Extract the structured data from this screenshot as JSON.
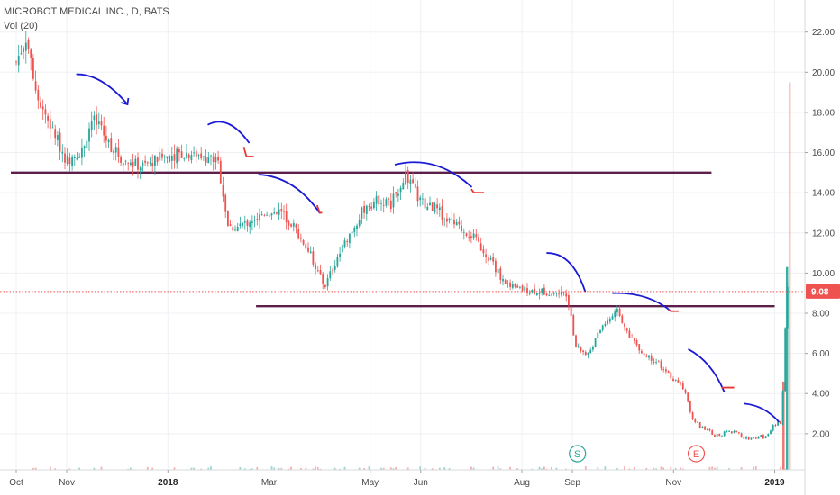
{
  "legend": {
    "title": "MICROBOT MEDICAL INC., D, BATS",
    "volume": "Vol (20)"
  },
  "colors": {
    "up": "#26a69a",
    "down": "#ef5350",
    "grid": "#eef0f3",
    "support_line": "#5c1f4a",
    "drawing_blue": "#1a1ad6",
    "drawing_red": "#e53935",
    "last_price": "#ef5350",
    "axis_text": "#4a4a4a"
  },
  "chart_data": {
    "type": "candlestick",
    "title": "MICROBOT MEDICAL INC., D, BATS",
    "indicator": "Vol (20)",
    "y_axis": {
      "side": "right",
      "min": 0.2,
      "max": 23.6,
      "ticks": [
        "2.00",
        "4.00",
        "6.00",
        "8.00",
        "10.00",
        "12.00",
        "14.00",
        "16.00",
        "18.00",
        "20.00",
        "22.00"
      ]
    },
    "x_axis": {
      "ticks": [
        {
          "label": "Oct",
          "pos": 0.0
        },
        {
          "label": "Nov",
          "pos": 1.0
        },
        {
          "label": "2018",
          "pos": 3.0,
          "bold": true
        },
        {
          "label": "Mar",
          "pos": 5.0
        },
        {
          "label": "May",
          "pos": 7.0
        },
        {
          "label": "Jun",
          "pos": 8.0
        },
        {
          "label": "Aug",
          "pos": 10.0
        },
        {
          "label": "Sep",
          "pos": 11.0
        },
        {
          "label": "Nov",
          "pos": 13.0
        },
        {
          "label": "2019",
          "pos": 15.0,
          "bold": true
        }
      ],
      "end_pos": 15.5
    },
    "last_price": {
      "value": 9.08,
      "label": "9.08"
    },
    "price_path": [
      [
        0.0,
        20.5
      ],
      [
        0.2,
        21.8
      ],
      [
        0.4,
        19.0
      ],
      [
        0.7,
        17.2
      ],
      [
        1.0,
        15.6
      ],
      [
        1.3,
        16.1
      ],
      [
        1.5,
        17.7
      ],
      [
        1.8,
        16.6
      ],
      [
        2.1,
        15.6
      ],
      [
        2.5,
        15.3
      ],
      [
        2.8,
        15.7
      ],
      [
        3.1,
        15.9
      ],
      [
        3.5,
        16.0
      ],
      [
        3.9,
        15.7
      ],
      [
        4.0,
        15.4
      ],
      [
        4.2,
        12.2
      ],
      [
        4.5,
        12.4
      ],
      [
        4.9,
        13.0
      ],
      [
        5.2,
        13.1
      ],
      [
        5.5,
        12.3
      ],
      [
        5.8,
        11.0
      ],
      [
        6.1,
        9.3
      ],
      [
        6.3,
        10.5
      ],
      [
        6.6,
        12.0
      ],
      [
        6.9,
        13.3
      ],
      [
        7.2,
        13.7
      ],
      [
        7.4,
        13.4
      ],
      [
        7.7,
        14.9
      ],
      [
        8.0,
        13.5
      ],
      [
        8.3,
        13.2
      ],
      [
        8.6,
        12.5
      ],
      [
        9.0,
        11.9
      ],
      [
        9.4,
        10.6
      ],
      [
        9.7,
        9.3
      ],
      [
        10.0,
        9.2
      ],
      [
        10.3,
        9.1
      ],
      [
        10.6,
        9.05
      ],
      [
        10.9,
        9.0
      ],
      [
        11.05,
        6.4
      ],
      [
        11.3,
        5.9
      ],
      [
        11.6,
        7.4
      ],
      [
        11.9,
        8.1
      ],
      [
        12.1,
        7.0
      ],
      [
        12.4,
        6.0
      ],
      [
        12.7,
        5.5
      ],
      [
        13.0,
        4.7
      ],
      [
        13.2,
        4.3
      ],
      [
        13.4,
        2.6
      ],
      [
        13.8,
        1.9
      ],
      [
        14.2,
        2.1
      ],
      [
        14.5,
        1.7
      ],
      [
        14.8,
        1.9
      ],
      [
        15.0,
        2.4
      ],
      [
        15.12,
        2.6
      ],
      [
        15.17,
        4.6
      ],
      [
        15.24,
        9.6
      ],
      [
        15.3,
        9.08
      ]
    ],
    "horizontal_lines": [
      {
        "x1": 0.0,
        "x2": 13.75,
        "y": 15.0
      },
      {
        "x1": 4.85,
        "x2": 15.0,
        "y": 8.35
      }
    ],
    "annotations": [
      {
        "type": "arrow",
        "color": "blue",
        "points": [
          [
            1.2,
            19.9
          ],
          [
            1.7,
            19.9
          ],
          [
            2.2,
            18.4
          ]
        ],
        "head": "down-right"
      },
      {
        "type": "arc",
        "color": "blue",
        "points": [
          [
            3.8,
            17.4
          ],
          [
            4.2,
            17.9
          ],
          [
            4.6,
            16.5
          ]
        ],
        "tick": [
          [
            4.5,
            16.1
          ],
          [
            4.7,
            15.8
          ]
        ]
      },
      {
        "type": "arrow",
        "color": "blue",
        "points": [
          [
            4.8,
            14.9
          ],
          [
            5.5,
            14.8
          ],
          [
            6.0,
            13.0
          ]
        ],
        "tick": [
          [
            5.95,
            13.2
          ],
          [
            6.05,
            13.0
          ]
        ]
      },
      {
        "type": "arc",
        "color": "blue",
        "points": [
          [
            7.5,
            15.4
          ],
          [
            8.3,
            15.9
          ],
          [
            9.0,
            14.3
          ]
        ],
        "tick": [
          [
            9.0,
            14.0
          ],
          [
            9.25,
            14.0
          ]
        ]
      },
      {
        "type": "arc",
        "color": "blue",
        "points": [
          [
            10.5,
            11.0
          ],
          [
            11.0,
            11.0
          ],
          [
            11.25,
            9.1
          ]
        ]
      },
      {
        "type": "arc",
        "color": "blue",
        "points": [
          [
            11.8,
            9.0
          ],
          [
            12.5,
            9.05
          ],
          [
            12.95,
            8.1
          ]
        ],
        "tick": [
          [
            12.9,
            8.0
          ],
          [
            13.1,
            8.1
          ]
        ]
      },
      {
        "type": "arc",
        "color": "blue",
        "points": [
          [
            13.3,
            6.2
          ],
          [
            13.75,
            5.6
          ],
          [
            14.0,
            4.1
          ]
        ],
        "tick": [
          [
            13.95,
            4.1
          ],
          [
            14.2,
            4.3
          ]
        ]
      },
      {
        "type": "arc",
        "color": "blue",
        "points": [
          [
            14.4,
            3.5
          ],
          [
            14.8,
            3.4
          ],
          [
            15.08,
            2.6
          ]
        ]
      }
    ],
    "markers": [
      {
        "label": "S",
        "pos": 11.1,
        "value": 1.7,
        "color": "#26a69a"
      },
      {
        "label": "E",
        "pos": 13.45,
        "value": 1.7,
        "color": "#ef5350"
      }
    ],
    "volume_spike": {
      "pos": 15.3,
      "value": 19.5
    },
    "grid": true,
    "legend_position": "top-left"
  }
}
